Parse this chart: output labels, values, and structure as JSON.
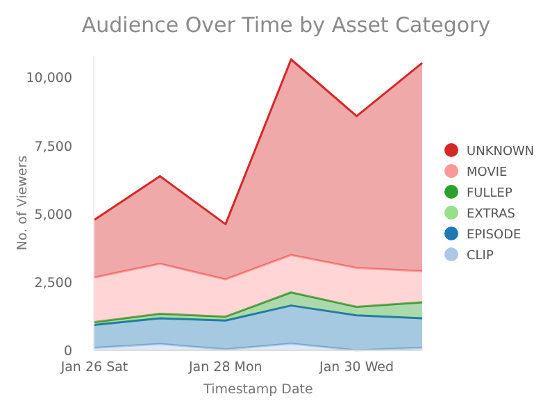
{
  "chart_data": {
    "type": "area",
    "stacked": true,
    "title": "Audience Over Time by Asset Category",
    "xlabel": "Timestamp Date",
    "ylabel": "No. of Viewers",
    "x": [
      "--01-26",
      "--01-27",
      "--01-28",
      "--01-29",
      "--01-30",
      "--01-31"
    ],
    "xlim": [
      "--01-26",
      "--01-31"
    ],
    "xticks": [
      {
        "value": "--01-26",
        "label": "Jan 26 Sat"
      },
      {
        "value": "--01-28",
        "label": "Jan 28 Mon"
      },
      {
        "value": "--01-30",
        "label": "Jan 30 Wed"
      }
    ],
    "ylim": [
      0,
      10800
    ],
    "yticks": [
      0,
      {
        "value": 2500,
        "label": "2,500"
      },
      {
        "value": 5000,
        "label": "5,000"
      },
      {
        "value": 7500,
        "label": "7,500"
      },
      {
        "value": 10000,
        "label": "10,000"
      }
    ],
    "grid": false,
    "legend": "right",
    "series": [
      {
        "name": "CLIP",
        "color": "#aec7e8",
        "values": [
          90,
          230,
          30,
          240,
          0,
          90
        ]
      },
      {
        "name": "EPISODE",
        "color": "#1f77b4",
        "values": [
          840,
          940,
          1060,
          1400,
          1280,
          1080
        ]
      },
      {
        "name": "EXTRAS",
        "color": "#98df8a",
        "values": [
          null,
          null,
          null,
          null,
          null,
          null
        ]
      },
      {
        "name": "FULLEP",
        "color": "#2ca02c",
        "values": [
          100,
          170,
          140,
          480,
          310,
          590
        ]
      },
      {
        "name": "MOVIE",
        "color": "#ff9896",
        "values": [
          1640,
          1830,
          1370,
          1370,
          1430,
          1140
        ]
      },
      {
        "name": "UNKNOWN",
        "color": "#d62728",
        "values": [
          2110,
          3210,
          2020,
          7170,
          5560,
          7630
        ]
      }
    ]
  }
}
